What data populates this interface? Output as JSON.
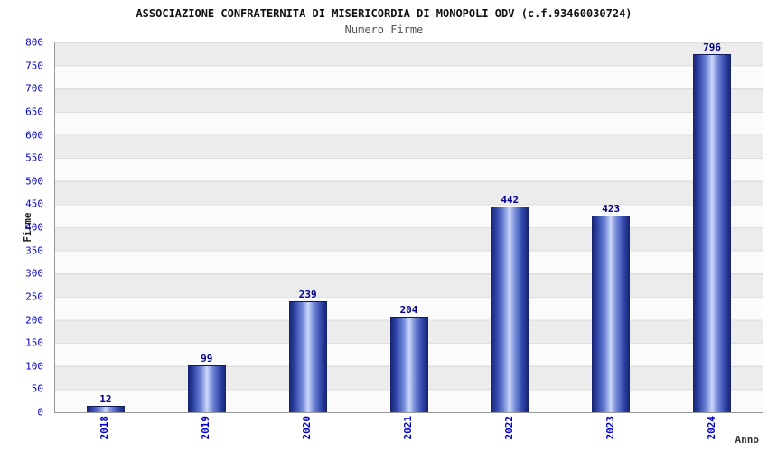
{
  "chart_data": {
    "type": "bar",
    "title": "ASSOCIAZIONE CONFRATERNITA DI MISERICORDIA DI MONOPOLI ODV (c.f.93460030724)",
    "subtitle": "Numero Firme",
    "xlabel": "Anno",
    "ylabel": "Firme",
    "categories": [
      "2018",
      "2019",
      "2020",
      "2021",
      "2022",
      "2023",
      "2024"
    ],
    "values": [
      12,
      99,
      239,
      204,
      442,
      423,
      796
    ],
    "ylim": [
      0,
      800
    ],
    "ytick_step": 50,
    "grid": "horizontal-bands-alternating",
    "legend": "none",
    "colors": {
      "bar_edge": "#16226e",
      "bar_center": "#ccd7f8",
      "value_label": "#00008b",
      "axis_tick_label": "#0000cc",
      "band_gray": "#ececec",
      "band_white": "#fbfbfb",
      "title": "#111111",
      "subtitle": "#555555"
    }
  }
}
